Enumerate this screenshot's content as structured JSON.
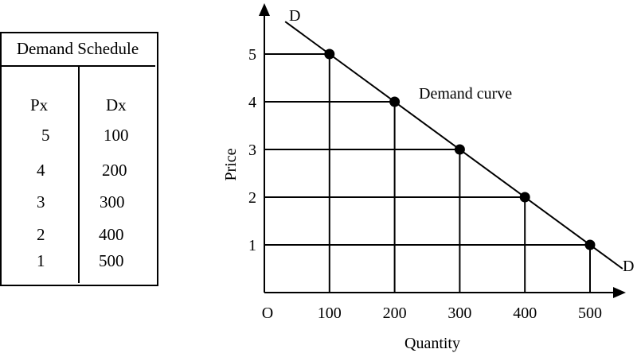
{
  "table": {
    "title": "Demand Schedule",
    "headers": [
      "Px",
      "Dx"
    ],
    "rows": [
      [
        "5",
        "100"
      ],
      [
        "4",
        "200"
      ],
      [
        "3",
        "300"
      ],
      [
        "2",
        "400"
      ],
      [
        "1",
        "500"
      ]
    ]
  },
  "chart_data": {
    "type": "line",
    "title": "",
    "xlabel": "Quantity",
    "ylabel": "Price",
    "origin_label": "O",
    "curve_label": "Demand curve",
    "curve_end_labels": [
      "D",
      "D"
    ],
    "x": [
      100,
      200,
      300,
      400,
      500
    ],
    "y": [
      5,
      4,
      3,
      2,
      1
    ],
    "xticks": [
      "100",
      "200",
      "300",
      "400",
      "500"
    ],
    "yticks": [
      "1",
      "2",
      "3",
      "4",
      "5"
    ],
    "xlim": [
      0,
      550
    ],
    "ylim": [
      0,
      6
    ],
    "grid": false,
    "guide_lines": true,
    "line_color": "#000000",
    "marker_color": "#000000"
  }
}
